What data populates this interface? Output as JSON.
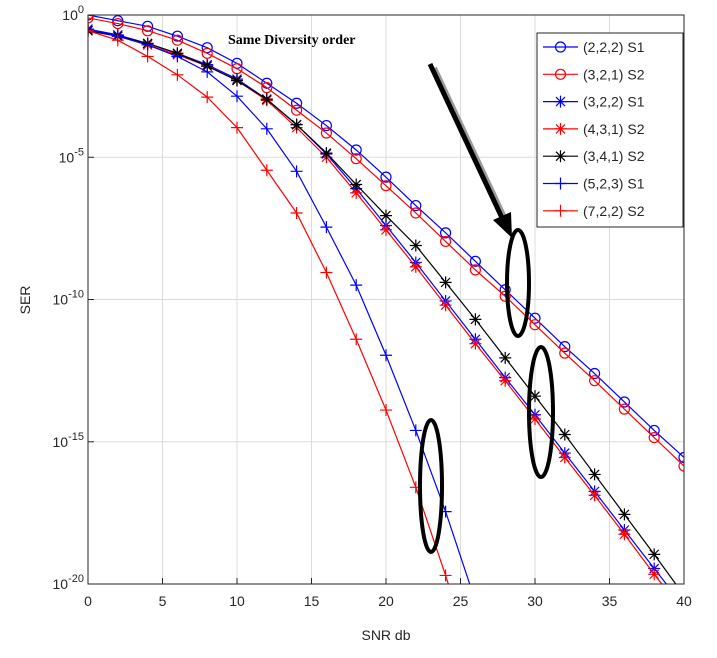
{
  "chart_data": {
    "type": "line",
    "x_label": "SNR db",
    "y_label": "SER",
    "annotation": "Same Diversity order",
    "log_y": true,
    "grid": true,
    "legend_position": "upper right",
    "x": [
      0,
      2,
      4,
      6,
      8,
      10,
      12,
      14,
      16,
      18,
      20,
      22,
      24,
      26,
      28,
      30,
      32,
      34,
      36,
      38,
      40
    ],
    "xlim": [
      0,
      40
    ],
    "xticks": [
      0,
      5,
      10,
      15,
      20,
      25,
      30,
      35,
      40
    ],
    "ylim": [
      1e-20,
      1
    ],
    "yticks": [
      {
        "value": 1e-20,
        "label": "10^-20"
      },
      {
        "value": 1e-15,
        "label": "10^-15"
      },
      {
        "value": 1e-10,
        "label": "10^-10"
      },
      {
        "value": 1e-05,
        "label": "10^-5"
      },
      {
        "value": 1,
        "label": "10^0"
      }
    ],
    "series": [
      {
        "name": "(2,2,2) S1",
        "color": "#0000ff",
        "marker": "o",
        "values": [
          1,
          0.63,
          0.4,
          0.18,
          0.071,
          0.02,
          0.004,
          0.00079,
          0.00013,
          1.8e-05,
          2e-06,
          2e-07,
          2.2e-08,
          2.2e-09,
          2.2e-10,
          2.2e-11,
          2.2e-12,
          2.5e-13,
          2.5e-14,
          2.5e-15,
          2.8e-16
        ]
      },
      {
        "name": "(3,2,1) S2",
        "color": "#ff0000",
        "marker": "o",
        "values": [
          0.79,
          0.5,
          0.28,
          0.13,
          0.045,
          0.013,
          0.0028,
          0.00045,
          7.1e-05,
          8.9e-06,
          1e-06,
          1.1e-07,
          1.1e-08,
          1.1e-09,
          1.3e-10,
          1.3e-11,
          1.3e-12,
          1.4e-13,
          1.4e-14,
          1.4e-15,
          1.4e-16
        ]
      },
      {
        "name": "(3,2,2) S1",
        "color": "#0000ff",
        "marker": "*",
        "values": [
          0.32,
          0.2,
          0.1,
          0.045,
          0.018,
          0.0056,
          0.0011,
          0.00014,
          1.3e-05,
          7.9e-07,
          4e-08,
          2e-09,
          8.9e-11,
          4e-12,
          1.8e-13,
          8.9e-15,
          4e-16,
          1.8e-17,
          7.9e-19,
          3.5e-20,
          1.6e-21
        ]
      },
      {
        "name": "(4,3,1) S2",
        "color": "#ff0000",
        "marker": "*",
        "values": [
          0.28,
          0.18,
          0.089,
          0.04,
          0.016,
          0.005,
          0.001,
          0.00011,
          1e-05,
          5.6e-07,
          2.8e-08,
          1.4e-09,
          6.3e-11,
          2.8e-12,
          1.4e-13,
          6.3e-15,
          2.8e-16,
          1.3e-17,
          5.6e-19,
          2.2e-20,
          1e-21
        ]
      },
      {
        "name": "(3,4,1) S2",
        "color": "#000000",
        "marker": "*",
        "values": [
          0.28,
          0.18,
          0.1,
          0.045,
          0.016,
          0.005,
          0.0011,
          0.00014,
          1.4e-05,
          1.1e-06,
          8.9e-08,
          7.9e-09,
          4e-10,
          2e-11,
          8.9e-13,
          4e-14,
          1.8e-15,
          7.1e-17,
          2.8e-18,
          1.1e-19,
          4e-21
        ]
      },
      {
        "name": "(5,2,3) S1",
        "color": "#0000ff",
        "marker": "+",
        "values": [
          0.32,
          0.18,
          0.089,
          0.035,
          0.01,
          0.0014,
          0.0001,
          3.2e-06,
          3.5e-08,
          3.2e-10,
          1.1e-12,
          2.5e-15,
          3.5e-18,
          2.5e-21,
          null,
          null,
          null,
          null,
          null,
          null,
          null
        ]
      },
      {
        "name": "(7,2,2) S2",
        "color": "#ff0000",
        "marker": "+",
        "values": [
          0.28,
          0.13,
          0.035,
          0.0079,
          0.0013,
          0.00011,
          3.5e-06,
          1.1e-07,
          8.9e-10,
          4e-12,
          1.3e-14,
          2.5e-17,
          2e-20,
          1e-23,
          null,
          null,
          null,
          null,
          null,
          null,
          null
        ]
      }
    ]
  }
}
